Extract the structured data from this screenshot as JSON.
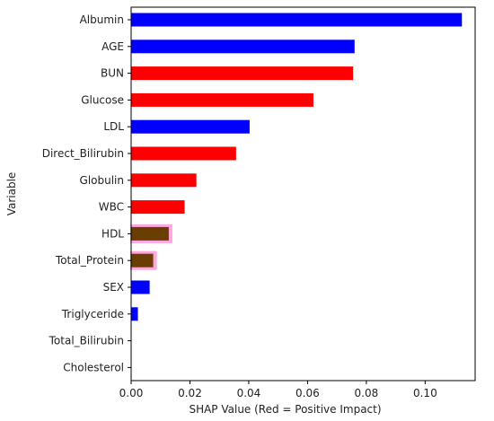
{
  "chart_data": {
    "type": "bar",
    "orientation": "horizontal",
    "title": "",
    "xlabel": "SHAP Value (Red = Positive Impact)",
    "ylabel": "Variable",
    "xlim": [
      0,
      0.117
    ],
    "x_ticks": [
      "0.00",
      "0.02",
      "0.04",
      "0.06",
      "0.08",
      "0.10"
    ],
    "x_tick_values": [
      0,
      0.02,
      0.04,
      0.06,
      0.08,
      0.1
    ],
    "grid": false,
    "legend": "none",
    "colors": {
      "positive": "#ff0000",
      "negative": "#0000ff",
      "overlay_fill": "#6a3d00",
      "overlay_glow": "#ff8fd8"
    },
    "bars": [
      {
        "label": "Albumin",
        "value": 0.1125,
        "impact": "negative"
      },
      {
        "label": "AGE",
        "value": 0.076,
        "impact": "negative"
      },
      {
        "label": "BUN",
        "value": 0.0755,
        "impact": "positive"
      },
      {
        "label": "Glucose",
        "value": 0.062,
        "impact": "positive"
      },
      {
        "label": "LDL",
        "value": 0.0403,
        "impact": "negative"
      },
      {
        "label": "Direct_Bilirubin",
        "value": 0.0357,
        "impact": "positive"
      },
      {
        "label": "Globulin",
        "value": 0.0222,
        "impact": "positive"
      },
      {
        "label": "WBC",
        "value": 0.0182,
        "impact": "positive"
      },
      {
        "label": "HDL",
        "value": 0.0128,
        "impact": "positive",
        "highlight": true
      },
      {
        "label": "Total_Protein",
        "value": 0.0075,
        "impact": "positive",
        "highlight": true
      },
      {
        "label": "SEX",
        "value": 0.0063,
        "impact": "negative"
      },
      {
        "label": "Triglyceride",
        "value": 0.0023,
        "impact": "negative"
      },
      {
        "label": "Total_Bilirubin",
        "value": 0.0,
        "impact": "positive"
      },
      {
        "label": "Cholesterol",
        "value": 0.0,
        "impact": "positive"
      }
    ]
  }
}
